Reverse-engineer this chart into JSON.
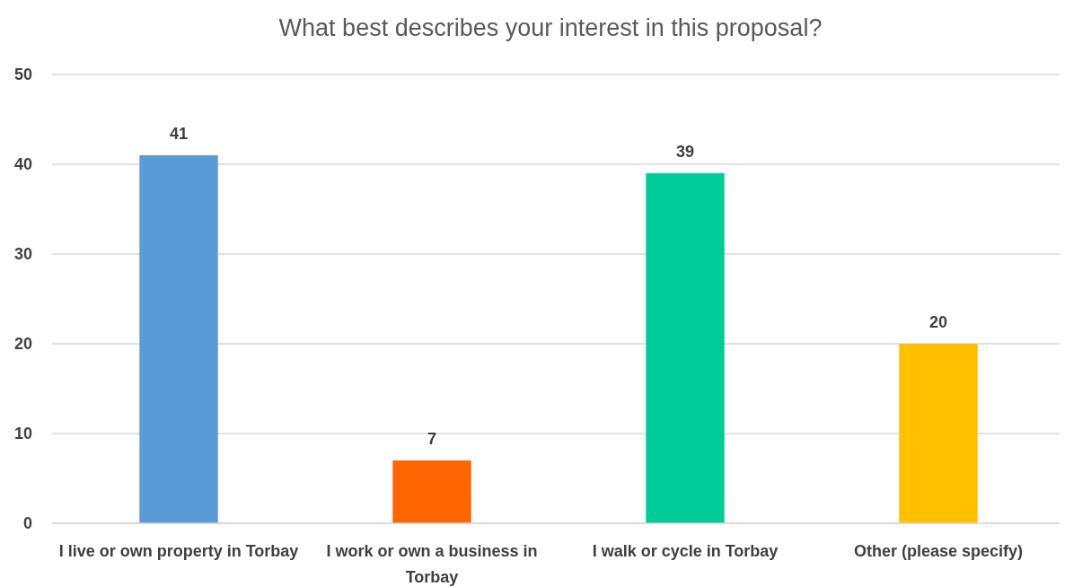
{
  "chart_data": {
    "type": "bar",
    "title": "What best describes your interest in this proposal?",
    "categories": [
      "I live or own property in Torbay",
      "I work or own a business in Torbay",
      "I walk or cycle in Torbay",
      "Other (please specify)"
    ],
    "values": [
      41,
      7,
      39,
      20
    ],
    "colors": [
      "#5b9bd5",
      "#ff6600",
      "#00cc99",
      "#ffc000"
    ],
    "ylim": [
      0,
      50
    ],
    "yticks": [
      0,
      10,
      20,
      30,
      40,
      50
    ],
    "grid": "y",
    "data_labels": true
  }
}
